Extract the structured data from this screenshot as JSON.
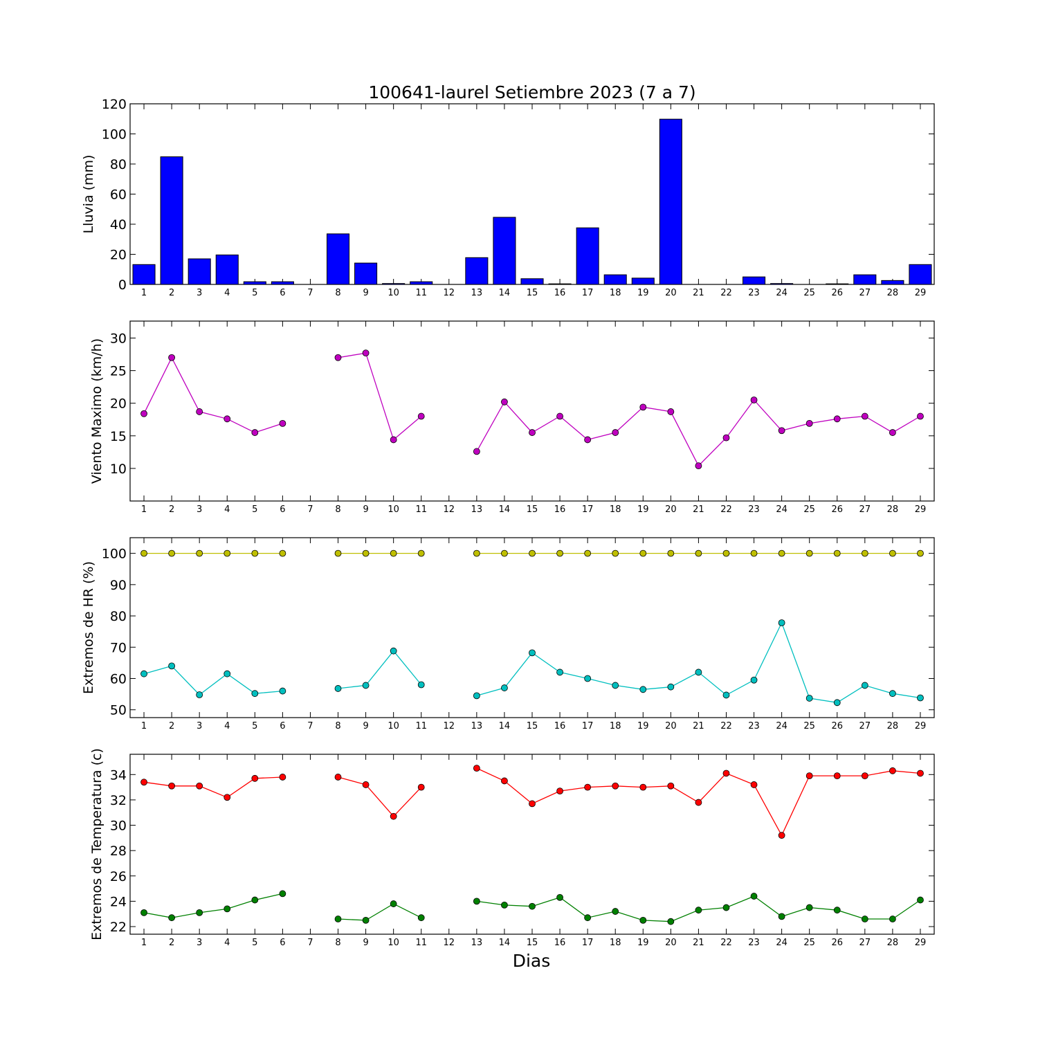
{
  "figure": {
    "title": "100641-laurel Setiembre 2023  (7 a 7)",
    "xlabel": "Dias"
  },
  "chart_data": [
    {
      "type": "bar",
      "ylabel": "Lluvia (mm)",
      "ylim": [
        0,
        120
      ],
      "yticks": [
        0,
        20,
        40,
        60,
        80,
        100,
        120
      ],
      "xlim": [
        0.5,
        29.5
      ],
      "categories": [
        "1",
        "2",
        "3",
        "4",
        "5",
        "6",
        "7",
        "8",
        "9",
        "10",
        "11",
        "12",
        "13",
        "14",
        "15",
        "16",
        "17",
        "18",
        "19",
        "20",
        "21",
        "22",
        "23",
        "24",
        "25",
        "26",
        "27",
        "28",
        "29"
      ],
      "series": [
        {
          "color": "#0000ff",
          "values": [
            13.2,
            84.8,
            17.0,
            19.6,
            1.8,
            1.8,
            0,
            33.6,
            14.2,
            0.6,
            1.8,
            0,
            17.8,
            44.6,
            3.8,
            0.4,
            37.6,
            6.4,
            4.2,
            109.8,
            0,
            0,
            5.0,
            0.6,
            0,
            0.4,
            6.4,
            2.6,
            13.2
          ]
        }
      ]
    },
    {
      "type": "line",
      "ylabel": "Viento Maximo (km/h)",
      "ylim": [
        5,
        32.6
      ],
      "yticks": [
        10,
        15,
        20,
        25,
        30
      ],
      "xlim": [
        0.5,
        29.5
      ],
      "x": [
        1,
        2,
        3,
        4,
        5,
        6,
        7,
        8,
        9,
        10,
        11,
        12,
        13,
        14,
        15,
        16,
        17,
        18,
        19,
        20,
        21,
        22,
        23,
        24,
        25,
        26,
        27,
        28,
        29
      ],
      "series": [
        {
          "color": "#bf00bf",
          "values": [
            18.4,
            27.0,
            18.7,
            17.6,
            15.5,
            16.9,
            null,
            27.0,
            27.7,
            14.4,
            18.0,
            null,
            12.6,
            20.2,
            15.5,
            18.0,
            14.4,
            15.5,
            19.4,
            18.7,
            10.4,
            14.7,
            20.5,
            15.8,
            16.9,
            17.6,
            18.0,
            15.5,
            18.0
          ]
        }
      ]
    },
    {
      "type": "line",
      "ylabel": "Extremos de HR (%)",
      "ylim": [
        47.5,
        105
      ],
      "yticks": [
        50,
        60,
        70,
        80,
        90,
        100
      ],
      "xlim": [
        0.5,
        29.5
      ],
      "x": [
        1,
        2,
        3,
        4,
        5,
        6,
        7,
        8,
        9,
        10,
        11,
        12,
        13,
        14,
        15,
        16,
        17,
        18,
        19,
        20,
        21,
        22,
        23,
        24,
        25,
        26,
        27,
        28,
        29
      ],
      "series": [
        {
          "color": "#bfbf00",
          "values": [
            100,
            100,
            100,
            100,
            100,
            100,
            null,
            100,
            100,
            100,
            100,
            null,
            100,
            100,
            100,
            100,
            100,
            100,
            100,
            100,
            100,
            100,
            100,
            100,
            100,
            100,
            100,
            100,
            100
          ]
        },
        {
          "color": "#00bfbf",
          "values": [
            61.5,
            64.0,
            54.8,
            61.5,
            55.2,
            56.0,
            null,
            56.8,
            57.8,
            68.8,
            58.0,
            null,
            54.5,
            57.0,
            68.2,
            62.0,
            60.0,
            57.8,
            56.5,
            57.3,
            62.0,
            54.7,
            59.5,
            77.8,
            53.7,
            52.3,
            57.8,
            55.2,
            53.8
          ]
        }
      ]
    },
    {
      "type": "line",
      "ylabel": "Extremos de Temperatura (c)",
      "ylim": [
        21.4,
        35.6
      ],
      "yticks": [
        22,
        24,
        26,
        28,
        30,
        32,
        34
      ],
      "xlim": [
        0.5,
        29.5
      ],
      "x": [
        1,
        2,
        3,
        4,
        5,
        6,
        7,
        8,
        9,
        10,
        11,
        12,
        13,
        14,
        15,
        16,
        17,
        18,
        19,
        20,
        21,
        22,
        23,
        24,
        25,
        26,
        27,
        28,
        29
      ],
      "series": [
        {
          "color": "#ff0000",
          "values": [
            33.4,
            33.1,
            33.1,
            32.2,
            33.7,
            33.8,
            null,
            33.8,
            33.2,
            30.7,
            33.0,
            null,
            34.5,
            33.5,
            31.7,
            32.7,
            33.0,
            33.1,
            33.0,
            33.1,
            31.8,
            34.1,
            33.2,
            29.2,
            33.9,
            33.9,
            33.9,
            34.3,
            34.1
          ]
        },
        {
          "color": "#008000",
          "values": [
            23.1,
            22.7,
            23.1,
            23.4,
            24.1,
            24.6,
            null,
            22.6,
            22.5,
            23.8,
            22.7,
            null,
            24.0,
            23.7,
            23.6,
            24.3,
            22.7,
            23.2,
            22.5,
            22.4,
            23.3,
            23.5,
            24.4,
            22.8,
            23.5,
            23.3,
            22.6,
            22.6,
            24.1
          ]
        }
      ]
    }
  ]
}
